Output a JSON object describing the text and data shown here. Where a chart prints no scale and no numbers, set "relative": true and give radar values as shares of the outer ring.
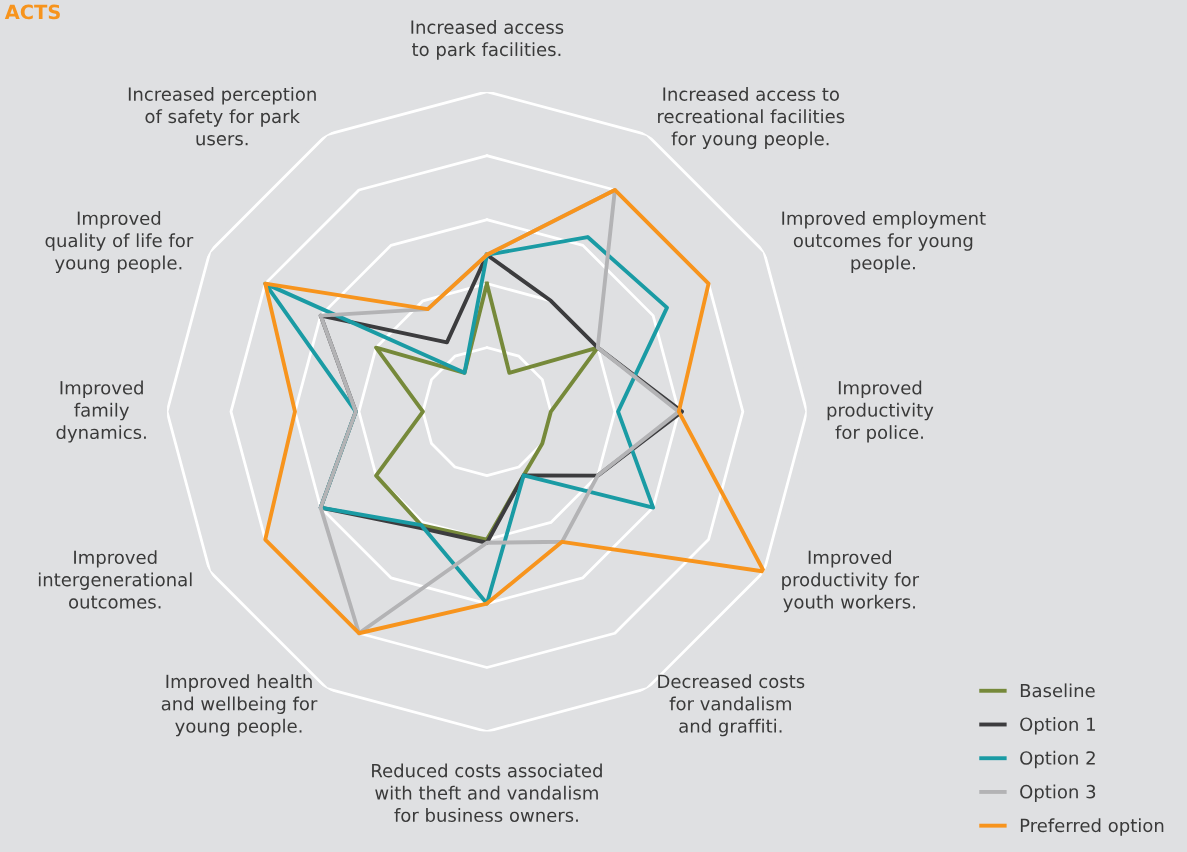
{
  "chart_data": {
    "type": "radar",
    "title": "ACTS",
    "relative": true,
    "grid": true,
    "legend": "bottom right",
    "categories": [
      "Increased access\nto park facilities.",
      "Increased access to\nrecreational facilities\nfor young people.",
      "Improved employment\noutcomes for young\npeople.",
      "Improved\nproductivity\nfor police.",
      "Improved\nproductivity for\nyouth workers.",
      "Decreased costs\nfor vandalism\nand graffiti.",
      "Reduced costs associated\nwith theft and vandalism\nfor business owners.",
      "Improved health\nand wellbeing for\nyoung people.",
      "Improved\nintergenerational\noutcomes.",
      "Improved\nfamily\ndynamics.",
      "Improved\nquality of life for\nyoung people.",
      "Increased perception\nof safety for park\nusers."
    ],
    "series": [
      {
        "name": "Baseline",
        "color": "#76893a",
        "values": [
          0.4,
          0.14,
          0.4,
          0.2,
          0.2,
          0.23,
          0.4,
          0.41,
          0.4,
          0.2,
          0.4,
          0.14
        ]
      },
      {
        "name": "Option 1",
        "color": "#3c3c3e",
        "values": [
          0.49,
          0.4,
          0.4,
          0.61,
          0.4,
          0.23,
          0.41,
          0.42,
          0.6,
          0.41,
          0.6,
          0.25
        ]
      },
      {
        "name": "Option 2",
        "color": "#1a9ba4",
        "values": [
          0.49,
          0.63,
          0.65,
          0.41,
          0.6,
          0.23,
          0.6,
          0.41,
          0.6,
          0.41,
          0.8,
          0.14
        ]
      },
      {
        "name": "Option 3",
        "color": "#b3b3b5",
        "values": [
          0.49,
          0.8,
          0.4,
          0.6,
          0.4,
          0.47,
          0.41,
          0.8,
          0.6,
          0.41,
          0.6,
          0.37
        ]
      },
      {
        "name": "Preferred option",
        "color": "#f7941d",
        "values": [
          0.49,
          0.8,
          0.8,
          0.6,
          1.0,
          0.47,
          0.6,
          0.8,
          0.8,
          0.6,
          0.8,
          0.37
        ]
      }
    ]
  }
}
